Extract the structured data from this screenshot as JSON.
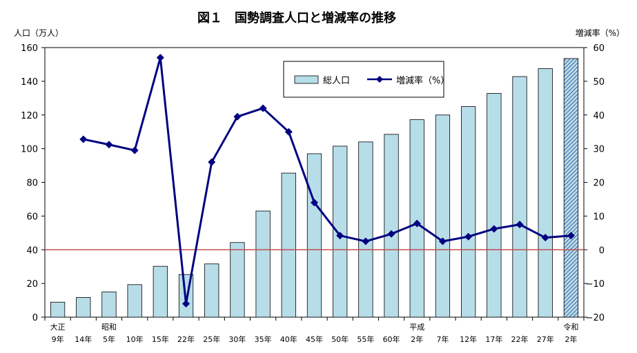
{
  "chart_data": {
    "type": "bar",
    "title": "図１　国勢調査人口と増減率の推移",
    "ylabel_left": "人口（万人）",
    "ylabel_right": "増減率（%）",
    "ylim_left": [
      0,
      160
    ],
    "ylim_right": [
      -20,
      60
    ],
    "yticks_left": [
      "0",
      "20",
      "40",
      "60",
      "80",
      "100",
      "120",
      "140",
      "160"
    ],
    "yticks_right": [
      "−20",
      "−10",
      "0",
      "10",
      "20",
      "30",
      "40",
      "50",
      "60"
    ],
    "era_labels": [
      "大正",
      "昭和",
      "平成",
      "令和"
    ],
    "era_label_positions": [
      0,
      2,
      14,
      20
    ],
    "categories": [
      "9年",
      "14年",
      "5年",
      "10年",
      "15年",
      "22年",
      "25年",
      "30年",
      "35年",
      "40年",
      "45年",
      "50年",
      "55年",
      "60年",
      "2年",
      "7年",
      "12年",
      "17年",
      "22年",
      "27年",
      "2年"
    ],
    "population_series": {
      "name": "総人口",
      "values": [
        8.9,
        11.7,
        15.0,
        19.3,
        30.2,
        25.3,
        31.6,
        44.3,
        63.0,
        85.5,
        97.0,
        101.5,
        104.0,
        108.5,
        117.2,
        120.0,
        125.0,
        132.8,
        142.8,
        147.5,
        153.5
      ],
      "hatched_last": true
    },
    "growth_rate_series": {
      "name": "増減率（%）",
      "values": [
        null,
        32.8,
        31.2,
        29.5,
        57.0,
        -16.0,
        26.0,
        39.5,
        42.0,
        35.0,
        14.0,
        4.2,
        2.5,
        4.7,
        7.8,
        2.5,
        3.9,
        6.2,
        7.5,
        3.6,
        4.2
      ]
    },
    "zero_line_color": "#c0504d",
    "bar_color": "#b7dde8",
    "line_color": "#000080",
    "legend_position": "top-center"
  }
}
